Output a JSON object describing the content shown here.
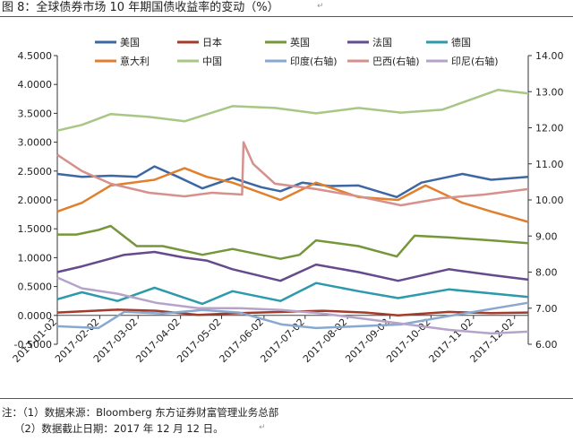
{
  "figure": {
    "title": "图 8：全球债券市场 10 年期国债收益率的变动（%）",
    "notes": [
      "注：（1）数据来源：Bloomberg 东方证券财富管理业务总部",
      "（2）数据截止日期：2017 年 12 月 12 日。"
    ]
  },
  "chart_data": {
    "type": "line",
    "title": "",
    "grid": false,
    "legend_position": "top",
    "x_ticks": [
      "2017-01-02",
      "2017-02-02",
      "2017-03-02",
      "2017-04-02",
      "2017-05-02",
      "2017-06-02",
      "2017-07-02",
      "2017-08-02",
      "2017-09-02",
      "2017-10-02",
      "2017-11-02",
      "2017-12-02"
    ],
    "x_range": [
      "2017-01-02",
      "2017-12-12"
    ],
    "y_left": {
      "range": [
        -0.5,
        4.5
      ],
      "ticks": [
        "4.5000",
        "4.0000",
        "3.5000",
        "3.0000",
        "2.5000",
        "2.0000",
        "1.5000",
        "1.0000",
        "0.5000",
        "0.0000",
        "-0.5000"
      ]
    },
    "y_right": {
      "range": [
        6.0,
        14.0
      ],
      "ticks": [
        "14.00",
        "13.00",
        "12.00",
        "11.00",
        "10.00",
        "9.00",
        "8.00",
        "7.00",
        "6.00"
      ]
    },
    "series": [
      {
        "name": "美国",
        "axis": "left",
        "color": "#3d67a2",
        "points": [
          [
            "2017-01-02",
            2.45
          ],
          [
            "2017-01-20",
            2.4
          ],
          [
            "2017-02-10",
            2.42
          ],
          [
            "2017-03-01",
            2.4
          ],
          [
            "2017-03-14",
            2.58
          ],
          [
            "2017-03-31",
            2.4
          ],
          [
            "2017-04-18",
            2.2
          ],
          [
            "2017-05-10",
            2.38
          ],
          [
            "2017-05-31",
            2.22
          ],
          [
            "2017-06-14",
            2.15
          ],
          [
            "2017-06-30",
            2.3
          ],
          [
            "2017-07-20",
            2.24
          ],
          [
            "2017-08-10",
            2.25
          ],
          [
            "2017-09-07",
            2.05
          ],
          [
            "2017-09-25",
            2.3
          ],
          [
            "2017-10-25",
            2.45
          ],
          [
            "2017-11-15",
            2.35
          ],
          [
            "2017-12-12",
            2.4
          ]
        ]
      },
      {
        "name": "日本",
        "axis": "left",
        "color": "#a33b2c",
        "points": [
          [
            "2017-01-02",
            0.05
          ],
          [
            "2017-02-15",
            0.1
          ],
          [
            "2017-03-15",
            0.08
          ],
          [
            "2017-04-15",
            0.01
          ],
          [
            "2017-05-15",
            0.04
          ],
          [
            "2017-06-15",
            0.06
          ],
          [
            "2017-07-15",
            0.08
          ],
          [
            "2017-08-15",
            0.05
          ],
          [
            "2017-09-08",
            0.0
          ],
          [
            "2017-10-15",
            0.06
          ],
          [
            "2017-11-15",
            0.04
          ],
          [
            "2017-12-12",
            0.05
          ]
        ]
      },
      {
        "name": "英国",
        "axis": "left",
        "color": "#75973a",
        "points": [
          [
            "2017-01-02",
            1.4
          ],
          [
            "2017-01-16",
            1.4
          ],
          [
            "2017-02-01",
            1.48
          ],
          [
            "2017-02-10",
            1.55
          ],
          [
            "2017-03-01",
            1.2
          ],
          [
            "2017-03-20",
            1.2
          ],
          [
            "2017-04-18",
            1.05
          ],
          [
            "2017-05-10",
            1.15
          ],
          [
            "2017-06-14",
            0.98
          ],
          [
            "2017-06-28",
            1.05
          ],
          [
            "2017-07-10",
            1.3
          ],
          [
            "2017-08-10",
            1.2
          ],
          [
            "2017-09-07",
            1.02
          ],
          [
            "2017-09-20",
            1.38
          ],
          [
            "2017-10-15",
            1.35
          ],
          [
            "2017-11-15",
            1.3
          ],
          [
            "2017-12-12",
            1.25
          ]
        ]
      },
      {
        "name": "法国",
        "axis": "left",
        "color": "#654a8d",
        "points": [
          [
            "2017-01-02",
            0.75
          ],
          [
            "2017-01-20",
            0.85
          ],
          [
            "2017-02-20",
            1.05
          ],
          [
            "2017-03-14",
            1.1
          ],
          [
            "2017-04-05",
            1.0
          ],
          [
            "2017-04-21",
            0.95
          ],
          [
            "2017-05-10",
            0.8
          ],
          [
            "2017-06-14",
            0.6
          ],
          [
            "2017-07-10",
            0.88
          ],
          [
            "2017-08-10",
            0.75
          ],
          [
            "2017-09-08",
            0.6
          ],
          [
            "2017-10-15",
            0.8
          ],
          [
            "2017-11-15",
            0.7
          ],
          [
            "2017-12-12",
            0.62
          ]
        ]
      },
      {
        "name": "德国",
        "axis": "left",
        "color": "#2c9aaa",
        "points": [
          [
            "2017-01-02",
            0.28
          ],
          [
            "2017-01-20",
            0.4
          ],
          [
            "2017-02-15",
            0.25
          ],
          [
            "2017-03-14",
            0.48
          ],
          [
            "2017-04-18",
            0.2
          ],
          [
            "2017-05-10",
            0.42
          ],
          [
            "2017-06-14",
            0.25
          ],
          [
            "2017-07-10",
            0.56
          ],
          [
            "2017-08-10",
            0.42
          ],
          [
            "2017-09-08",
            0.3
          ],
          [
            "2017-10-15",
            0.45
          ],
          [
            "2017-11-15",
            0.38
          ],
          [
            "2017-12-12",
            0.32
          ]
        ]
      },
      {
        "name": "意大利",
        "axis": "left",
        "color": "#e07f2d",
        "points": [
          [
            "2017-01-02",
            1.8
          ],
          [
            "2017-01-20",
            1.95
          ],
          [
            "2017-02-10",
            2.25
          ],
          [
            "2017-03-14",
            2.35
          ],
          [
            "2017-04-05",
            2.55
          ],
          [
            "2017-04-21",
            2.4
          ],
          [
            "2017-05-10",
            2.3
          ],
          [
            "2017-06-14",
            2.0
          ],
          [
            "2017-07-10",
            2.3
          ],
          [
            "2017-08-10",
            2.05
          ],
          [
            "2017-09-08",
            2.0
          ],
          [
            "2017-09-28",
            2.25
          ],
          [
            "2017-10-25",
            1.95
          ],
          [
            "2017-11-15",
            1.8
          ],
          [
            "2017-12-12",
            1.62
          ]
        ]
      },
      {
        "name": "中国",
        "axis": "right",
        "color": "#a8c785",
        "points": [
          [
            "2017-01-02",
            11.92
          ],
          [
            "2017-01-20",
            12.08
          ],
          [
            "2017-02-10",
            12.38
          ],
          [
            "2017-03-10",
            12.3
          ],
          [
            "2017-04-05",
            12.18
          ],
          [
            "2017-05-10",
            12.6
          ],
          [
            "2017-06-10",
            12.55
          ],
          [
            "2017-07-10",
            12.4
          ],
          [
            "2017-08-10",
            12.55
          ],
          [
            "2017-09-10",
            12.42
          ],
          [
            "2017-10-10",
            12.5
          ],
          [
            "2017-10-31",
            12.78
          ],
          [
            "2017-11-20",
            13.05
          ],
          [
            "2017-12-12",
            12.95
          ]
        ]
      },
      {
        "name": "印度(右轴)",
        "axis": "right",
        "color": "#89a8cf",
        "points": [
          [
            "2017-01-02",
            6.5
          ],
          [
            "2017-02-01",
            6.45
          ],
          [
            "2017-02-20",
            6.9
          ],
          [
            "2017-03-20",
            6.85
          ],
          [
            "2017-04-18",
            6.95
          ],
          [
            "2017-05-15",
            6.88
          ],
          [
            "2017-06-15",
            6.55
          ],
          [
            "2017-07-10",
            6.45
          ],
          [
            "2017-08-10",
            6.5
          ],
          [
            "2017-09-10",
            6.55
          ],
          [
            "2017-10-10",
            6.75
          ],
          [
            "2017-11-10",
            6.95
          ],
          [
            "2017-12-12",
            7.15
          ]
        ]
      },
      {
        "name": "巴西(右轴)",
        "axis": "right",
        "color": "#d7918d",
        "points": [
          [
            "2017-01-02",
            11.25
          ],
          [
            "2017-01-20",
            10.8
          ],
          [
            "2017-02-10",
            10.45
          ],
          [
            "2017-03-10",
            10.2
          ],
          [
            "2017-04-05",
            10.1
          ],
          [
            "2017-04-25",
            10.2
          ],
          [
            "2017-05-17",
            10.15
          ],
          [
            "2017-05-18",
            11.6
          ],
          [
            "2017-05-25",
            11.0
          ],
          [
            "2017-06-10",
            10.45
          ],
          [
            "2017-07-10",
            10.3
          ],
          [
            "2017-08-10",
            10.1
          ],
          [
            "2017-09-10",
            9.85
          ],
          [
            "2017-10-10",
            10.05
          ],
          [
            "2017-11-10",
            10.15
          ],
          [
            "2017-12-12",
            10.3
          ]
        ]
      },
      {
        "name": "印尼(右轴)",
        "axis": "right",
        "color": "#b5a3c9",
        "points": [
          [
            "2017-01-02",
            7.85
          ],
          [
            "2017-01-20",
            7.55
          ],
          [
            "2017-02-15",
            7.4
          ],
          [
            "2017-03-15",
            7.15
          ],
          [
            "2017-04-15",
            7.0
          ],
          [
            "2017-05-15",
            7.0
          ],
          [
            "2017-06-15",
            6.95
          ],
          [
            "2017-07-15",
            6.85
          ],
          [
            "2017-08-15",
            6.7
          ],
          [
            "2017-09-15",
            6.55
          ],
          [
            "2017-10-15",
            6.4
          ],
          [
            "2017-11-15",
            6.3
          ],
          [
            "2017-12-12",
            6.35
          ]
        ]
      }
    ]
  }
}
